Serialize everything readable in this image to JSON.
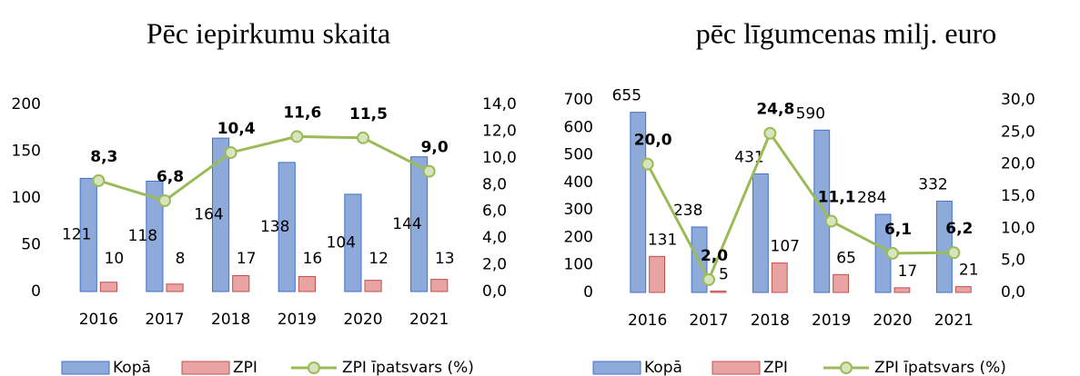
{
  "chart_data": [
    {
      "type": "bar-line",
      "title": "Pēc iepirkumu skaita",
      "categories": [
        "2016",
        "2017",
        "2018",
        "2019",
        "2020",
        "2021"
      ],
      "series": [
        {
          "name": "Kopā",
          "color": "#8eaadb",
          "values": [
            121,
            118,
            164,
            138,
            104,
            144
          ]
        },
        {
          "name": "ZPI",
          "color": "#e8a3a3",
          "values": [
            10,
            8,
            17,
            16,
            12,
            13
          ]
        },
        {
          "name": "ZPI īpatsvars (%)",
          "color": "#9bbb59",
          "axis": "y2",
          "values": [
            8.3,
            6.8,
            10.4,
            11.6,
            11.5,
            9.0
          ],
          "value_labels": [
            "8,3",
            "6,8",
            "10,4",
            "11,6",
            "11,5",
            "9,0"
          ]
        }
      ],
      "ylim": [
        0,
        200
      ],
      "yticks": [
        0,
        50,
        100,
        150,
        200
      ],
      "y2lim": [
        0,
        14
      ],
      "y2ticks": [
        {
          "value": 0,
          "label": "0,0"
        },
        {
          "value": 2,
          "label": "2,0"
        },
        {
          "value": 4,
          "label": "4,0"
        },
        {
          "value": 6,
          "label": "6,0"
        },
        {
          "value": 8,
          "label": "8,0"
        },
        {
          "value": 10,
          "label": "10,0"
        },
        {
          "value": 12,
          "label": "12,0"
        },
        {
          "value": 14,
          "label": "14,0"
        }
      ],
      "legend": "bottom"
    },
    {
      "type": "bar-line",
      "title": "pēc līgumcenas milj. euro",
      "categories": [
        "2016",
        "2017",
        "2018",
        "2019",
        "2020",
        "2021"
      ],
      "series": [
        {
          "name": "Kopā",
          "color": "#8eaadb",
          "values": [
            655,
            238,
            431,
            590,
            284,
            332
          ]
        },
        {
          "name": "ZPI",
          "color": "#e8a3a3",
          "values": [
            131,
            5,
            107,
            65,
            17,
            21
          ]
        },
        {
          "name": "ZPI īpatsvars (%)",
          "color": "#9bbb59",
          "axis": "y2",
          "values": [
            20.0,
            2.0,
            24.8,
            11.1,
            6.1,
            6.2
          ],
          "value_labels": [
            "20,0",
            "2,0",
            "24,8",
            "11,1",
            "6,1",
            "6,2"
          ]
        }
      ],
      "ylim": [
        0,
        700
      ],
      "yticks": [
        0,
        100,
        200,
        300,
        400,
        500,
        600,
        700
      ],
      "y2lim": [
        0,
        30
      ],
      "y2ticks": [
        {
          "value": 0,
          "label": "0,0"
        },
        {
          "value": 5,
          "label": "5,0"
        },
        {
          "value": 10,
          "label": "10,0"
        },
        {
          "value": 15,
          "label": "15,0"
        },
        {
          "value": 20,
          "label": "20,0"
        },
        {
          "value": 25,
          "label": "25,0"
        },
        {
          "value": 30,
          "label": "30,0"
        }
      ],
      "legend": "bottom"
    }
  ]
}
